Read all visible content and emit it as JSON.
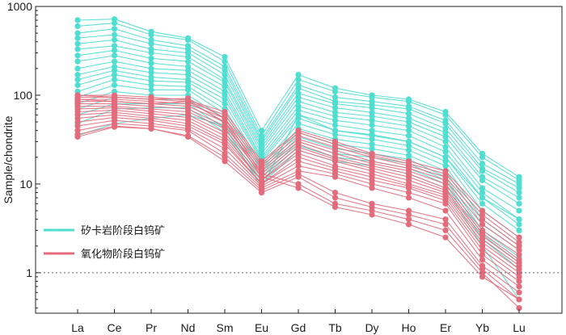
{
  "chart_data": {
    "type": "line",
    "scale": "log",
    "ylabel": "Sample/chondrite",
    "ylim": [
      0.35,
      1000
    ],
    "yticks": [
      {
        "value": 1,
        "label": "1"
      },
      {
        "value": 10,
        "label": "10"
      },
      {
        "value": 100,
        "label": "100"
      },
      {
        "value": 1000,
        "label": "1000"
      }
    ],
    "reference_line": {
      "value": 1,
      "style": "dotted"
    },
    "categories": [
      "La",
      "Ce",
      "Pr",
      "Nd",
      "Sm",
      "Eu",
      "Gd",
      "Tb",
      "Dy",
      "Ho",
      "Er",
      "Yb",
      "Lu"
    ],
    "legend": {
      "placement": "lower-left",
      "items": [
        {
          "label": "矽卡岩阶段白钨矿",
          "color": "#4fded0"
        },
        {
          "label": "氧化物阶段白钨矿",
          "color": "#e36b7b"
        }
      ]
    },
    "groups": [
      {
        "name": "矽卡岩阶段白钨矿",
        "color": "#4fded0",
        "series": [
          [
            700,
            720,
            520,
            440,
            270,
            40,
            170,
            120,
            100,
            90,
            65,
            22,
            12
          ],
          [
            600,
            650,
            480,
            420,
            240,
            35,
            150,
            110,
            95,
            85,
            60,
            20,
            11
          ],
          [
            500,
            560,
            420,
            360,
            210,
            32,
            130,
            95,
            85,
            75,
            52,
            17,
            10
          ],
          [
            440,
            480,
            380,
            330,
            190,
            30,
            120,
            85,
            78,
            70,
            48,
            15,
            9
          ],
          [
            380,
            420,
            330,
            300,
            170,
            28,
            105,
            80,
            72,
            62,
            42,
            14,
            8
          ],
          [
            330,
            360,
            300,
            270,
            150,
            26,
            95,
            72,
            64,
            55,
            38,
            12,
            7
          ],
          [
            280,
            320,
            260,
            240,
            140,
            24,
            85,
            64,
            58,
            50,
            34,
            11,
            6
          ],
          [
            240,
            280,
            230,
            210,
            125,
            22,
            75,
            58,
            52,
            45,
            30,
            9,
            5
          ],
          [
            200,
            240,
            200,
            190,
            110,
            20,
            68,
            52,
            46,
            40,
            26,
            8,
            4
          ],
          [
            170,
            210,
            180,
            170,
            100,
            19,
            60,
            46,
            40,
            35,
            23,
            7,
            3.5
          ],
          [
            150,
            190,
            160,
            150,
            90,
            18,
            55,
            40,
            36,
            30,
            20,
            6,
            3
          ],
          [
            130,
            170,
            145,
            140,
            80,
            16,
            48,
            36,
            32,
            27,
            18,
            5,
            2.5
          ],
          [
            110,
            150,
            130,
            125,
            70,
            15,
            42,
            32,
            28,
            24,
            16,
            4,
            2
          ],
          [
            95,
            130,
            115,
            115,
            62,
            14,
            38,
            28,
            25,
            21,
            14,
            3.5,
            1.8
          ],
          [
            80,
            110,
            100,
            100,
            55,
            13,
            34,
            25,
            22,
            19,
            12,
            3,
            1.5
          ],
          [
            70,
            95,
            90,
            90,
            48,
            12,
            30,
            22,
            20,
            17,
            11,
            2.7,
            1.3
          ],
          [
            60,
            80,
            80,
            80,
            42,
            11,
            27,
            20,
            18,
            15,
            10,
            2.4,
            1.1
          ],
          [
            48,
            70,
            72,
            72,
            38,
            10,
            24,
            18,
            16,
            13,
            9,
            2,
            0.5
          ],
          [
            35,
            48,
            55,
            60,
            45,
            9,
            60,
            40,
            35,
            30,
            20,
            7,
            4
          ]
        ]
      },
      {
        "name": "氧化物阶段白钨矿",
        "color": "#e36b7b",
        "series": [
          [
            100,
            100,
            95,
            88,
            65,
            18,
            40,
            30,
            22,
            18,
            14,
            5,
            2.5
          ],
          [
            95,
            95,
            90,
            85,
            60,
            17,
            38,
            28,
            21,
            17,
            13,
            4.5,
            2.2
          ],
          [
            90,
            90,
            85,
            80,
            55,
            16,
            35,
            26,
            20,
            16,
            12,
            4,
            2
          ],
          [
            85,
            85,
            80,
            75,
            50,
            15,
            32,
            24,
            18,
            15,
            11,
            3.5,
            1.8
          ],
          [
            80,
            80,
            75,
            70,
            45,
            14,
            30,
            22,
            17,
            14,
            10,
            3,
            1.6
          ],
          [
            75,
            75,
            70,
            65,
            42,
            13,
            28,
            20,
            16,
            13,
            9,
            2.8,
            1.4
          ],
          [
            70,
            72,
            66,
            60,
            38,
            12,
            26,
            19,
            15,
            12,
            8.5,
            2.6,
            1.3
          ],
          [
            65,
            68,
            62,
            56,
            35,
            11,
            24,
            18,
            14,
            11,
            8,
            2.4,
            1.2
          ],
          [
            60,
            64,
            58,
            52,
            32,
            11,
            22,
            16,
            13,
            10,
            7.5,
            2.2,
            1.1
          ],
          [
            55,
            60,
            55,
            48,
            30,
            10,
            20,
            15,
            12,
            9.5,
            7,
            2,
            1
          ],
          [
            50,
            56,
            52,
            45,
            28,
            10,
            18,
            14,
            11,
            9,
            6.5,
            1.8,
            0.9
          ],
          [
            45,
            52,
            48,
            42,
            25,
            9.5,
            16,
            13,
            10,
            8,
            6,
            1.6,
            0.8
          ],
          [
            40,
            48,
            45,
            40,
            22,
            9,
            14,
            12,
            9,
            7,
            5,
            1.4,
            0.7
          ],
          [
            36,
            45,
            42,
            35,
            20,
            8.5,
            13,
            8,
            6,
            5,
            4,
            1.2,
            0.6
          ],
          [
            34,
            44,
            42,
            34,
            18,
            8,
            12,
            7,
            5.5,
            4.5,
            3.5,
            1.1,
            0.5
          ],
          [
            100,
            95,
            90,
            92,
            55,
            13,
            10,
            6,
            5,
            4,
            3,
            1,
            0.4
          ],
          [
            90,
            85,
            80,
            85,
            50,
            12,
            9,
            5.5,
            4.5,
            3.5,
            2.5,
            0.9,
            0.5
          ]
        ]
      }
    ]
  }
}
